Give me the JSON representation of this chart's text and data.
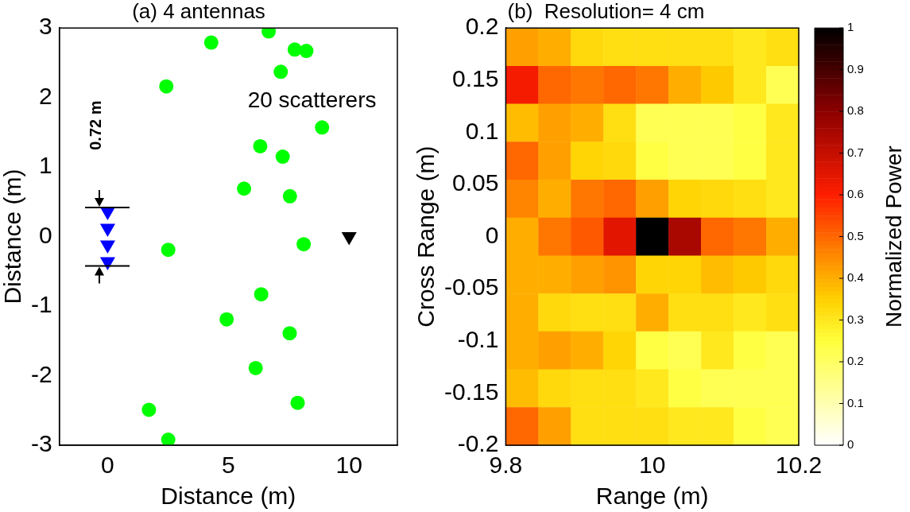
{
  "chart_data": [
    {
      "type": "scatter",
      "title": "(a) 4 antennas",
      "xlabel": "Distance (m)",
      "ylabel": "Distance (m)",
      "xlim": [
        -2,
        12
      ],
      "xticks": [
        0,
        5,
        10
      ],
      "ylim": [
        -3,
        3
      ],
      "yticks": [
        -3,
        -2,
        -1,
        0,
        1,
        2,
        3
      ],
      "grid": false,
      "annotations": [
        "20 scatterers",
        "0.72 m"
      ],
      "series": [
        {
          "color": "#00ff00",
          "marker": "circle",
          "x": [
            6.67,
            4.29,
            7.75,
            8.23,
            7.17,
            2.43,
            8.88,
            6.32,
            7.25,
            5.65,
            7.55,
            2.51,
            8.12,
            6.36,
            4.93,
            7.54,
            6.13,
            7.87,
            1.71,
            2.51
          ],
          "values": [
            2.95,
            2.79,
            2.69,
            2.67,
            2.37,
            2.16,
            1.57,
            1.3,
            1.15,
            0.69,
            0.58,
            -0.19,
            -0.11,
            -0.83,
            -1.19,
            -1.39,
            -1.89,
            -2.39,
            -2.49,
            -2.92
          ]
        },
        {
          "color": "#0000ff",
          "marker": "triangle",
          "x": [
            0,
            0,
            0,
            0
          ],
          "values": [
            0.36,
            0.12,
            -0.12,
            -0.36
          ]
        },
        {
          "color": "#000000",
          "marker": "triangle",
          "x": [
            10
          ],
          "values": [
            0
          ]
        }
      ]
    },
    {
      "type": "heatmap",
      "title": "(b)  Resolution= 4 cm",
      "xlabel": "Range (m)",
      "ylabel": "Cross Range (m)",
      "clabel": "Normalized Power",
      "xlim": [
        9.8,
        10.2
      ],
      "xticks": [
        9.8,
        10,
        10.2
      ],
      "ylim": [
        -0.2,
        0.2
      ],
      "yticks": [
        -0.2,
        -0.15,
        -0.1,
        -0.05,
        0,
        0.05,
        0.1,
        0.15,
        0.2
      ],
      "clim": [
        0,
        1
      ],
      "cticks": [
        0,
        0.1,
        0.2,
        0.3,
        0.4,
        0.5,
        0.6,
        0.7,
        0.8,
        0.9,
        1
      ],
      "cells": [
        [
          0.42,
          0.4,
          0.33,
          0.32,
          0.32,
          0.32,
          0.32,
          0.3,
          0.32
        ],
        [
          0.62,
          0.5,
          0.48,
          0.5,
          0.48,
          0.4,
          0.36,
          0.3,
          0.22
        ],
        [
          0.38,
          0.42,
          0.4,
          0.32,
          0.22,
          0.22,
          0.22,
          0.24,
          0.3
        ],
        [
          0.5,
          0.42,
          0.34,
          0.33,
          0.24,
          0.22,
          0.22,
          0.24,
          0.3
        ],
        [
          0.46,
          0.4,
          0.48,
          0.5,
          0.42,
          0.34,
          0.33,
          0.32,
          0.3
        ],
        [
          0.4,
          0.48,
          0.52,
          0.65,
          1,
          0.75,
          0.5,
          0.48,
          0.4
        ],
        [
          0.4,
          0.4,
          0.42,
          0.44,
          0.34,
          0.34,
          0.38,
          0.36,
          0.33
        ],
        [
          0.4,
          0.33,
          0.32,
          0.32,
          0.4,
          0.32,
          0.32,
          0.3,
          0.32
        ],
        [
          0.4,
          0.42,
          0.4,
          0.34,
          0.24,
          0.22,
          0.3,
          0.24,
          0.22
        ],
        [
          0.38,
          0.33,
          0.32,
          0.32,
          0.3,
          0.24,
          0.22,
          0.22,
          0.22
        ],
        [
          0.5,
          0.42,
          0.32,
          0.32,
          0.32,
          0.3,
          0.3,
          0.24,
          0.22
        ]
      ]
    }
  ]
}
